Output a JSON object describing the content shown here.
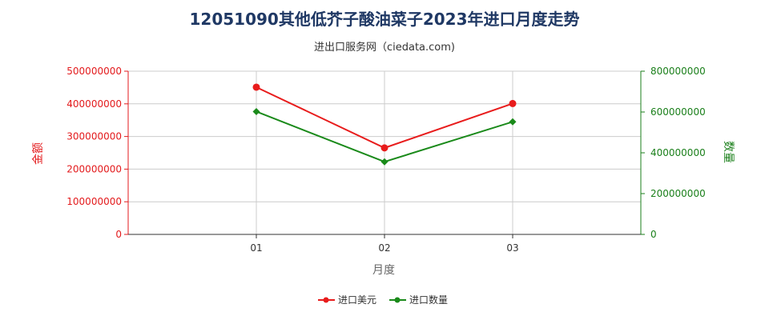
{
  "title": "12051090其他低芥子酸油菜子2023年进口月度走势",
  "subtitle": "进出口服务网（ciedata.com)",
  "colors": {
    "left_axis": "#e31a1c",
    "right_axis": "#1a7f1a",
    "grid": "#cccccc"
  },
  "chart_data": {
    "type": "line",
    "categories": [
      "01",
      "02",
      "03"
    ],
    "xlabel": "月度",
    "series": [
      {
        "name": "进口美元",
        "axis": "left",
        "color": "#e81c1c",
        "values": [
          451000000,
          265000000,
          401000000
        ]
      },
      {
        "name": "进口数量",
        "axis": "right",
        "color": "#1a8a1a",
        "values": [
          602000000,
          356000000,
          552000000
        ]
      }
    ],
    "y_left": {
      "label": "金额",
      "min": 0,
      "max": 500000000,
      "ticks": [
        "0",
        "100000000",
        "200000000",
        "300000000",
        "400000000",
        "500000000"
      ]
    },
    "y_right": {
      "label": "数量",
      "min": 0,
      "max": 800000000,
      "ticks": [
        "0",
        "200000000",
        "400000000",
        "600000000",
        "800000000"
      ]
    },
    "grid": true,
    "legend": "bottom-center"
  }
}
